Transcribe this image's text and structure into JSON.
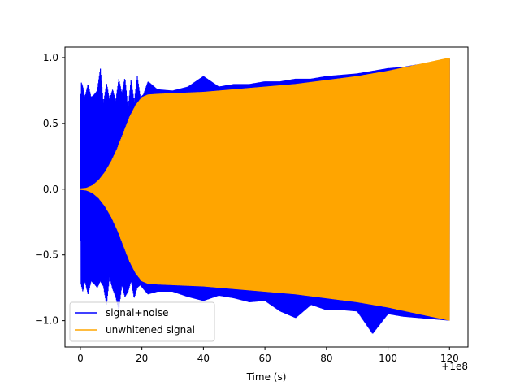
{
  "chart_data": {
    "type": "line",
    "title": "",
    "xlabel": "Time (s)",
    "ylabel": "",
    "x_offset_label": "+1e8",
    "xlim": [
      -5,
      126
    ],
    "ylim": [
      -1.2,
      1.08
    ],
    "x_ticks": [
      0,
      20,
      40,
      60,
      80,
      100,
      120
    ],
    "x_tick_labels": [
      "0",
      "20",
      "40",
      "60",
      "80",
      "100",
      "120"
    ],
    "y_ticks": [
      -1.0,
      -0.5,
      0.0,
      0.5,
      1.0
    ],
    "y_tick_labels": [
      "−1.0",
      "−0.5",
      "0.0",
      "0.5",
      "1.0"
    ],
    "grid": false,
    "legend_position": "lower-left",
    "series": [
      {
        "name": "signal+noise",
        "color": "#0000ff",
        "description": "oscillating waveform, envelope shown (upper / lower)",
        "x": [
          0,
          0.2,
          0.8,
          1.5,
          2.5,
          3.5,
          4.5,
          5.5,
          6.5,
          7.5,
          8.5,
          9.5,
          10.5,
          11.5,
          12.5,
          13.5,
          14.5,
          15.5,
          16.5,
          17.5,
          18.5,
          19.5,
          20.5,
          22,
          25,
          30,
          35,
          40,
          45,
          50,
          55,
          60,
          65,
          70,
          75,
          80,
          85,
          90,
          95,
          100,
          105,
          110,
          115,
          120
        ],
        "upper": [
          0.15,
          0.82,
          0.78,
          0.7,
          0.8,
          0.7,
          0.72,
          0.75,
          0.92,
          0.65,
          0.81,
          0.68,
          0.76,
          0.67,
          0.84,
          0.73,
          0.85,
          0.61,
          0.84,
          0.66,
          0.86,
          0.7,
          0.72,
          0.82,
          0.76,
          0.75,
          0.78,
          0.86,
          0.78,
          0.8,
          0.8,
          0.82,
          0.82,
          0.84,
          0.84,
          0.86,
          0.87,
          0.88,
          0.9,
          0.92,
          0.93,
          0.95,
          0.96,
          0.99
        ],
        "lower": [
          -0.15,
          -0.72,
          -0.78,
          -0.7,
          -0.8,
          -0.7,
          -0.72,
          -0.75,
          -0.7,
          -0.74,
          -0.88,
          -0.67,
          -0.76,
          -0.82,
          -0.92,
          -0.73,
          -0.82,
          -0.78,
          -0.7,
          -0.83,
          -0.75,
          -0.73,
          -0.76,
          -0.8,
          -0.78,
          -0.78,
          -0.82,
          -0.85,
          -0.81,
          -0.83,
          -0.86,
          -0.85,
          -0.93,
          -0.98,
          -0.88,
          -0.92,
          -0.92,
          -0.93,
          -1.1,
          -0.95,
          -0.97,
          -0.98,
          -0.99,
          -1.0
        ]
      },
      {
        "name": "unwhitened signal",
        "color": "#ffa500",
        "description": "chirp waveform, envelope shown (upper / lower)",
        "x": [
          0,
          2,
          4,
          6,
          8,
          10,
          12,
          14,
          16,
          18,
          20,
          22,
          25,
          30,
          40,
          50,
          60,
          70,
          80,
          90,
          100,
          110,
          120
        ],
        "upper": [
          0.005,
          0.01,
          0.03,
          0.07,
          0.13,
          0.21,
          0.31,
          0.43,
          0.55,
          0.64,
          0.7,
          0.72,
          0.725,
          0.73,
          0.74,
          0.76,
          0.78,
          0.8,
          0.83,
          0.86,
          0.9,
          0.95,
          1.0
        ],
        "lower": [
          -0.005,
          -0.01,
          -0.03,
          -0.07,
          -0.13,
          -0.21,
          -0.31,
          -0.43,
          -0.55,
          -0.64,
          -0.7,
          -0.72,
          -0.725,
          -0.73,
          -0.74,
          -0.76,
          -0.78,
          -0.8,
          -0.83,
          -0.86,
          -0.9,
          -0.95,
          -1.0
        ]
      }
    ]
  }
}
